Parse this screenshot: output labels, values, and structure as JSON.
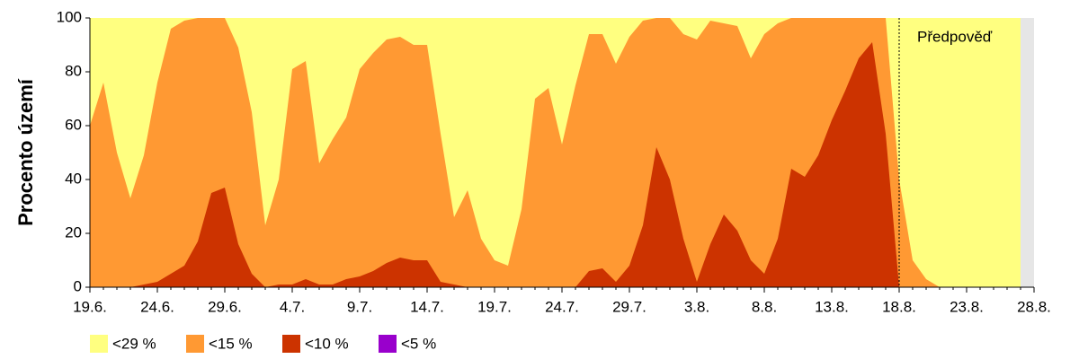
{
  "chart_data": {
    "type": "area",
    "y_label": "Procento území",
    "categories": [
      "19.6.",
      null,
      null,
      null,
      null,
      "24.6.",
      null,
      null,
      null,
      null,
      "29.6.",
      null,
      null,
      null,
      null,
      "4.7.",
      null,
      null,
      null,
      null,
      "9.7.",
      null,
      null,
      null,
      null,
      "14.7.",
      null,
      null,
      null,
      null,
      "19.7.",
      null,
      null,
      null,
      null,
      "24.7.",
      null,
      null,
      null,
      null,
      "29.7.",
      null,
      null,
      null,
      null,
      "3.8.",
      null,
      null,
      null,
      null,
      "8.8.",
      null,
      null,
      null,
      null,
      "13.8.",
      null,
      null,
      null,
      null,
      "18.8.",
      null,
      null,
      null,
      null,
      "23.8.",
      null,
      null,
      null,
      null,
      "28.8."
    ],
    "series": [
      {
        "name": "<29 %",
        "color": "#ffff80",
        "values": [
          100,
          100,
          100,
          100,
          100,
          100,
          100,
          100,
          100,
          100,
          100,
          100,
          100,
          100,
          100,
          100,
          100,
          100,
          100,
          100,
          100,
          100,
          100,
          100,
          100,
          100,
          100,
          100,
          100,
          100,
          100,
          100,
          100,
          100,
          100,
          100,
          100,
          100,
          100,
          100,
          100,
          100,
          100,
          100,
          100,
          100,
          100,
          100,
          100,
          100,
          100,
          100,
          100,
          100,
          100,
          100,
          100,
          100,
          100,
          100,
          100,
          100,
          100,
          100,
          100,
          100,
          100,
          100,
          100,
          100,
          null
        ]
      },
      {
        "name": "<15 %",
        "color": "#ff9933",
        "values": [
          60,
          76,
          50,
          33,
          49,
          76,
          96,
          99,
          100,
          100,
          100,
          89,
          65,
          23,
          40,
          81,
          84,
          46,
          55,
          63,
          81,
          87,
          92,
          93,
          90,
          90,
          57,
          26,
          36,
          18,
          10,
          8,
          29,
          70,
          74,
          53,
          75,
          94,
          94,
          83,
          93,
          99,
          100,
          100,
          94,
          92,
          99,
          98,
          97,
          85,
          94,
          98,
          100,
          100,
          100,
          100,
          100,
          100,
          100,
          100,
          40,
          10,
          3,
          0,
          0,
          0,
          0,
          0,
          0,
          0,
          null
        ]
      },
      {
        "name": "<10 %",
        "color": "#cc3300",
        "values": [
          0,
          0,
          0,
          0,
          1,
          2,
          5,
          8,
          17,
          35,
          37,
          16,
          5,
          0,
          1,
          1,
          3,
          1,
          1,
          3,
          4,
          6,
          9,
          11,
          10,
          10,
          2,
          1,
          0,
          0,
          0,
          0,
          0,
          0,
          0,
          0,
          0,
          6,
          7,
          2,
          8,
          23,
          52,
          40,
          18,
          2,
          16,
          27,
          21,
          10,
          5,
          18,
          44,
          41,
          49,
          62,
          73,
          85,
          91,
          57,
          0,
          0,
          0,
          0,
          0,
          0,
          0,
          0,
          0,
          0,
          null
        ]
      },
      {
        "name": "<5 %",
        "color": "#9900cc",
        "values": [
          0,
          0,
          0,
          0,
          0,
          0,
          0,
          0,
          0,
          0,
          0,
          0,
          0,
          0,
          0,
          0,
          0,
          0,
          0,
          0,
          0,
          0,
          0,
          0,
          0,
          0,
          0,
          0,
          0,
          0,
          0,
          0,
          0,
          0,
          0,
          0,
          0,
          0,
          0,
          0,
          0,
          0,
          0,
          0,
          0,
          0,
          0,
          0,
          0,
          0,
          0,
          0,
          0,
          0,
          0,
          0,
          0,
          0,
          0,
          0,
          0,
          0,
          0,
          0,
          0,
          0,
          0,
          0,
          0,
          0,
          null
        ]
      }
    ],
    "ylim": [
      0,
      100
    ],
    "yticks": [
      0,
      20,
      40,
      60,
      80,
      100
    ],
    "annotations": [
      {
        "label": "Předpověď",
        "at": "18.8."
      }
    ]
  }
}
